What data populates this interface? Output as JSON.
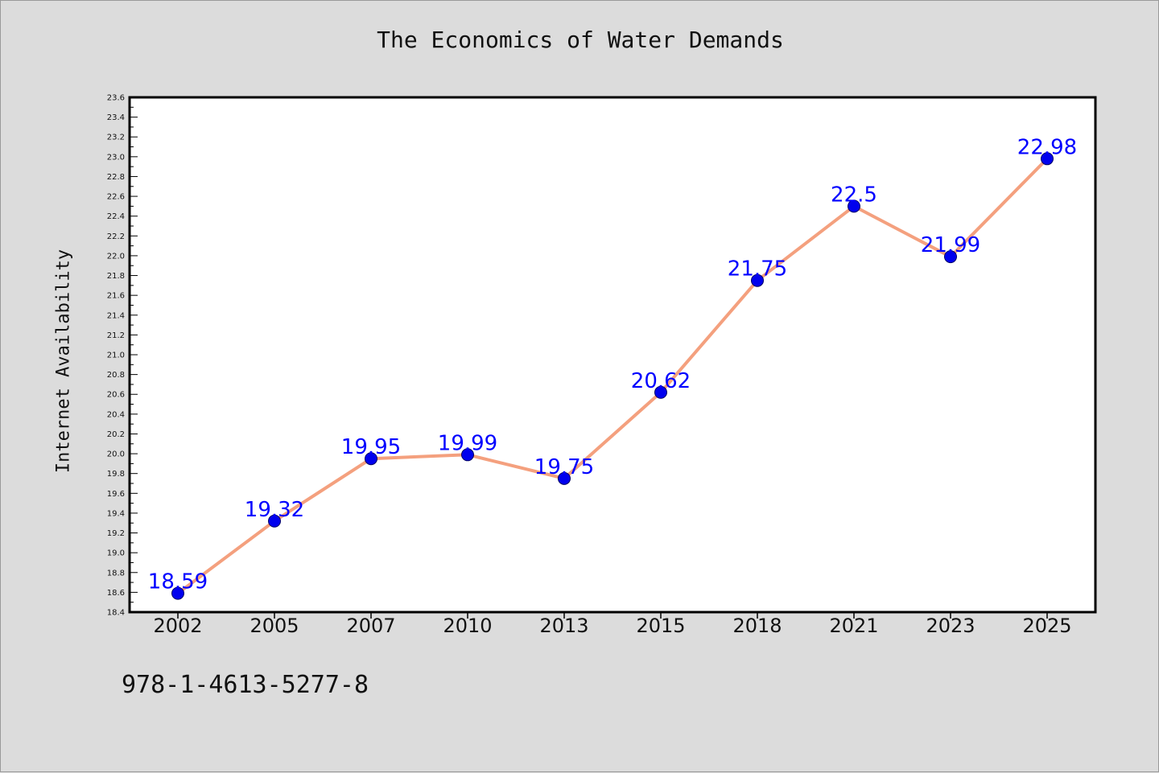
{
  "title": "The Economics of Water Demands",
  "footer_code": "978-1-4613-5277-8",
  "chart_data": {
    "type": "line",
    "title": "The Economics of Water Demands",
    "xlabel": "",
    "ylabel": "Internet Availability",
    "categories": [
      "2002",
      "2005",
      "2007",
      "2010",
      "2013",
      "2015",
      "2018",
      "2021",
      "2023",
      "2025"
    ],
    "values": [
      18.59,
      19.32,
      19.95,
      19.99,
      19.75,
      20.62,
      21.75,
      22.5,
      21.99,
      22.98
    ],
    "data_labels": [
      "18.59",
      "19.32",
      "19.95",
      "19.99",
      "19.75",
      "20.62",
      "21.75",
      "22.5",
      "21.99",
      "22.98"
    ],
    "ylim": [
      18.4,
      23.6
    ],
    "y_tick_step": 0.2,
    "grid": false,
    "legend": "none",
    "colors": {
      "line": "#f4a07e",
      "marker": "#0000ee",
      "data_label": "#0000ff",
      "plot_background": "#ffffff",
      "page_background": "#dcdcdc"
    }
  }
}
